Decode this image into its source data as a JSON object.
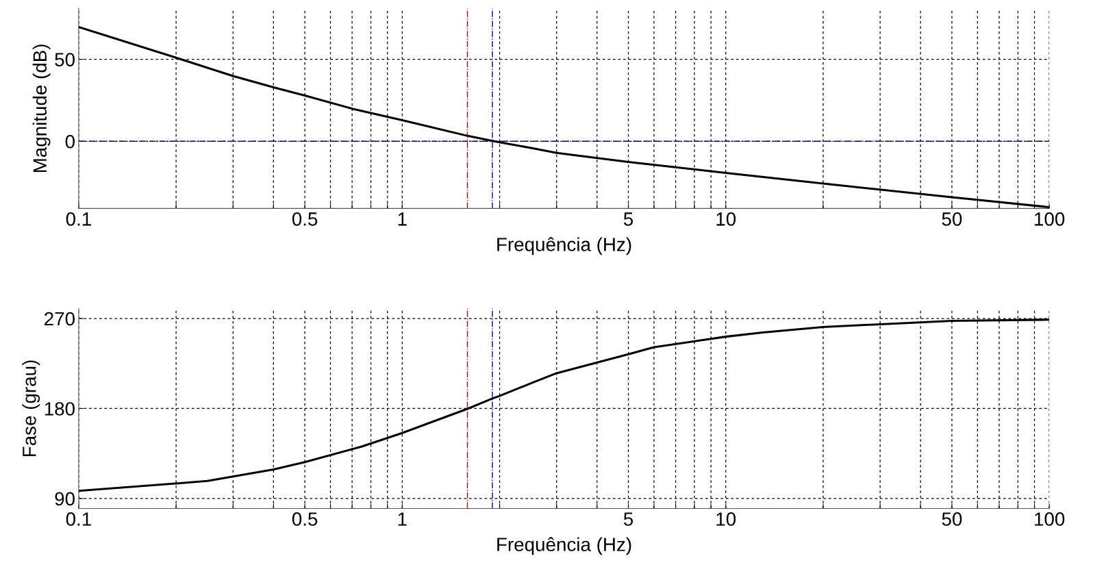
{
  "chart_data": [
    {
      "type": "line",
      "xlabel": "Frequência (Hz)",
      "ylabel": "Magnitude (dB)",
      "log": "x",
      "grid": true,
      "line_style": "solid",
      "marker": "none",
      "xlim": [
        0.1,
        100
      ],
      "ylim": [
        -41,
        81
      ],
      "xticks": [
        0.1,
        {
          "value": 0.2,
          "label": null
        },
        {
          "value": 0.3,
          "label": null
        },
        {
          "value": 0.4,
          "label": null
        },
        0.5,
        {
          "value": 0.6,
          "label": null
        },
        {
          "value": 0.7,
          "label": null
        },
        {
          "value": 0.8,
          "label": null
        },
        {
          "value": 0.9,
          "label": null
        },
        1,
        {
          "value": 2,
          "label": null
        },
        {
          "value": 3,
          "label": null
        },
        {
          "value": 4,
          "label": null
        },
        5,
        {
          "value": 6,
          "label": null
        },
        {
          "value": 7,
          "label": null
        },
        {
          "value": 8,
          "label": null
        },
        {
          "value": 9,
          "label": null
        },
        10,
        {
          "value": 20,
          "label": null
        },
        {
          "value": 30,
          "label": null
        },
        {
          "value": 40,
          "label": null
        },
        50,
        {
          "value": 60,
          "label": null
        },
        {
          "value": 70,
          "label": null
        },
        {
          "value": 80,
          "label": null
        },
        {
          "value": 90,
          "label": null
        },
        100
      ],
      "yticks": [
        0,
        50
      ],
      "x": [
        0.1,
        0.2,
        0.3,
        0.4,
        0.5,
        0.7,
        1,
        1.6,
        1.9,
        2,
        2.5,
        3,
        5,
        10,
        20,
        50,
        100
      ],
      "series": [
        {
          "color": "#000000",
          "values": [
            69.7,
            51,
            39.8,
            32.9,
            27.9,
            19.9,
            12.9,
            3.2,
            0.2,
            -0.6,
            -4.1,
            -7.1,
            -12.6,
            -19.3,
            -25.8,
            -34.1,
            -40.2
          ]
        }
      ],
      "ref_lines": [
        {
          "axis": "y",
          "value": 0,
          "color": "#00008b",
          "line_style": "dashdot"
        },
        {
          "axis": "x",
          "value": 1.59,
          "color": "#cc0000",
          "line_style": "dashdot"
        },
        {
          "axis": "x",
          "value": 1.9,
          "color": "#00008b",
          "line_style": "dashdot"
        }
      ]
    },
    {
      "type": "line",
      "xlabel": "Frequência (Hz)",
      "ylabel": "Fase (grau)",
      "log": "x",
      "grid": true,
      "line_style": "solid",
      "marker": "none",
      "xlim": [
        0.1,
        100
      ],
      "ylim": [
        80,
        280
      ],
      "xticks": [
        0.1,
        {
          "value": 0.2,
          "label": null
        },
        {
          "value": 0.3,
          "label": null
        },
        {
          "value": 0.4,
          "label": null
        },
        0.5,
        {
          "value": 0.6,
          "label": null
        },
        {
          "value": 0.7,
          "label": null
        },
        {
          "value": 0.8,
          "label": null
        },
        {
          "value": 0.9,
          "label": null
        },
        1,
        {
          "value": 2,
          "label": null
        },
        {
          "value": 3,
          "label": null
        },
        {
          "value": 4,
          "label": null
        },
        5,
        {
          "value": 6,
          "label": null
        },
        {
          "value": 7,
          "label": null
        },
        {
          "value": 8,
          "label": null
        },
        {
          "value": 9,
          "label": null
        },
        10,
        {
          "value": 20,
          "label": null
        },
        {
          "value": 30,
          "label": null
        },
        {
          "value": 40,
          "label": null
        },
        50,
        {
          "value": 60,
          "label": null
        },
        {
          "value": 70,
          "label": null
        },
        {
          "value": 80,
          "label": null
        },
        {
          "value": 90,
          "label": null
        },
        100
      ],
      "yticks": [
        90,
        180,
        270
      ],
      "x": [
        0.1,
        0.2,
        0.25,
        0.4,
        0.5,
        0.75,
        1,
        1.6,
        1.9,
        2,
        2.5,
        3,
        5,
        6,
        10,
        13,
        20,
        50,
        100
      ],
      "series": [
        {
          "color": "#000000",
          "values": [
            97.7,
            105,
            107.6,
            119,
            126.4,
            142,
            155.5,
            180,
            190,
            192.6,
            205.2,
            215.3,
            234.3,
            241.3,
            251.8,
            256,
            261.5,
            267.7,
            268.8
          ]
        }
      ],
      "ref_lines": [
        {
          "axis": "x",
          "value": 1.59,
          "color": "#cc0000",
          "line_style": "dashdot"
        },
        {
          "axis": "x",
          "value": 1.9,
          "color": "#00008b",
          "line_style": "dashdot"
        }
      ]
    }
  ]
}
